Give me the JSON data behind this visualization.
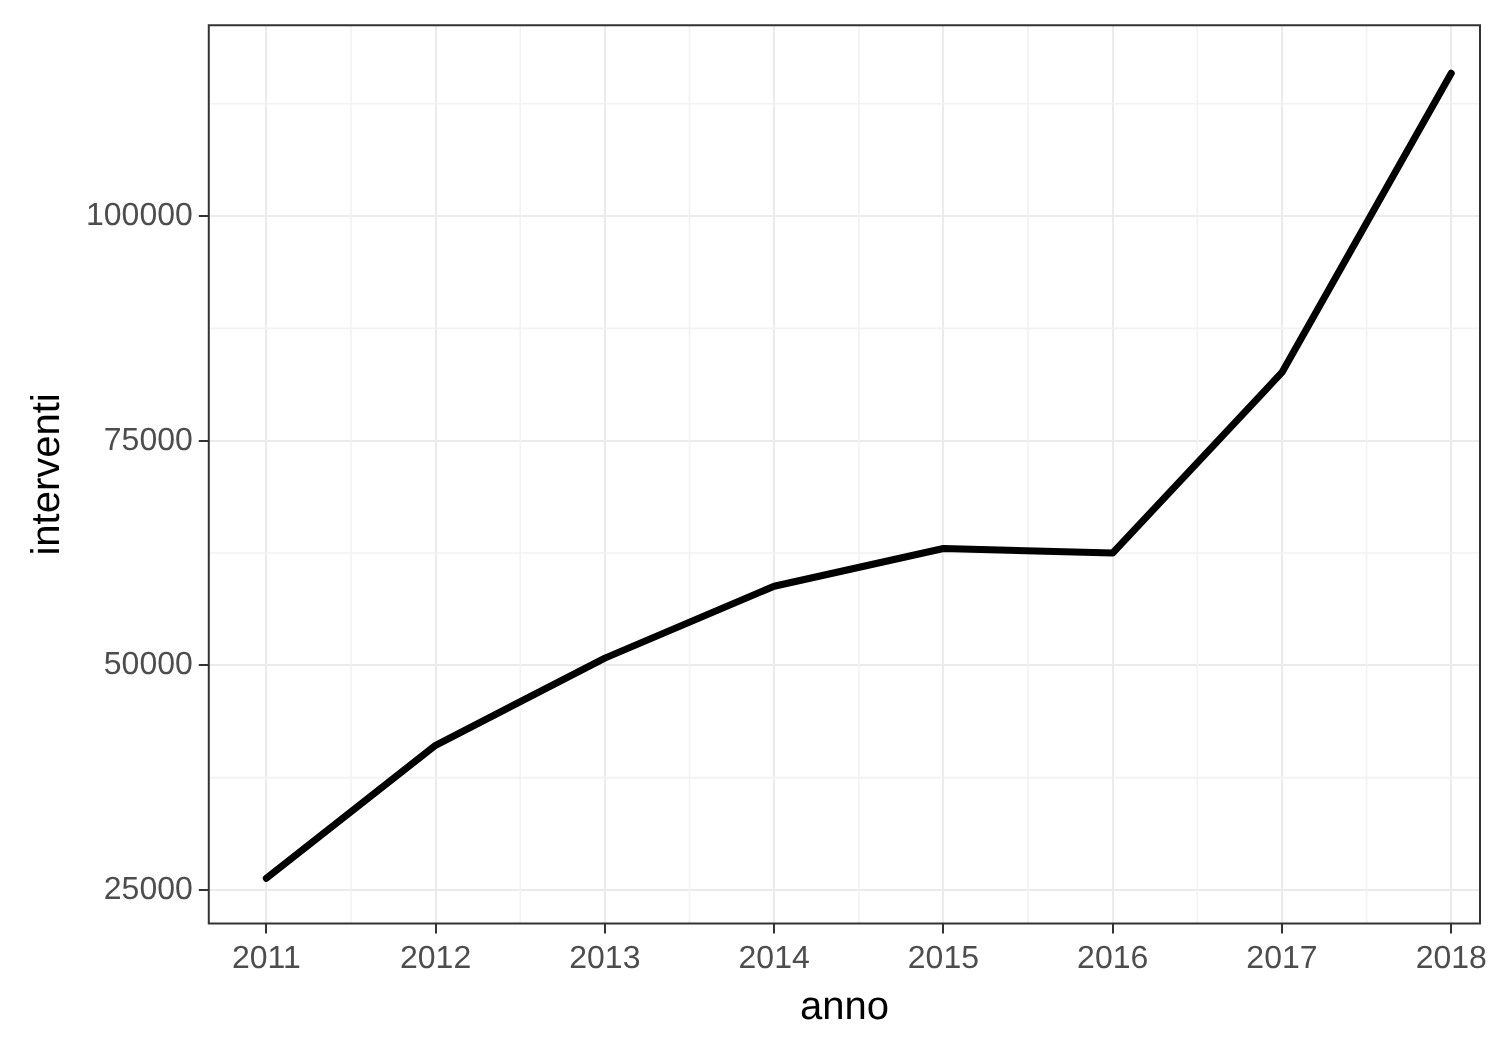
{
  "chart_data": {
    "type": "line",
    "xlabel": "anno",
    "ylabel": "interventi",
    "x": [
      2011,
      2012,
      2013,
      2014,
      2015,
      2016,
      2017,
      2018
    ],
    "series": [
      {
        "color": "#000000",
        "values": [
          26300,
          41100,
          50800,
          58800,
          63000,
          62500,
          82600,
          115900
        ]
      }
    ],
    "xlim": [
      2010.66,
      2018.17
    ],
    "xticks": [
      2011,
      2012,
      2013,
      2014,
      2015,
      2016,
      2017,
      2018
    ],
    "ylim": [
      21250,
      121250
    ],
    "yticks": [
      25000,
      50000,
      75000,
      100000
    ],
    "grid": true,
    "legend": false,
    "marker": "none",
    "line_style": "solid"
  }
}
